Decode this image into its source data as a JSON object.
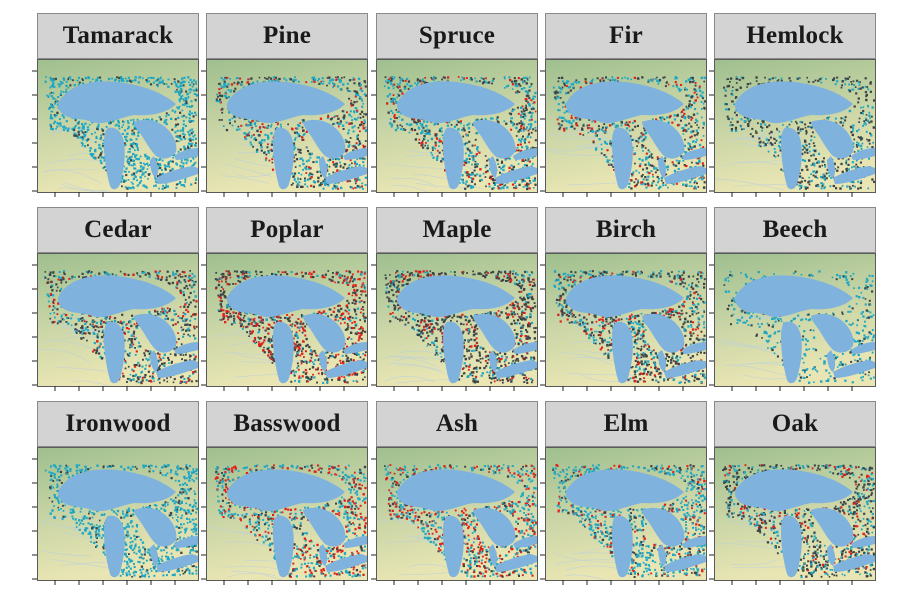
{
  "panels": [
    {
      "label": "Tamarack",
      "palette": [
        "#1fa7c4",
        "#1fa7c4",
        "#1fa7c4",
        "#1fa7c4",
        "#3c4446",
        "#1fa7c4"
      ],
      "density": 0.85
    },
    {
      "label": "Pine",
      "palette": [
        "#1fa7c4",
        "#3c4446",
        "#1fa7c4",
        "#3c4446",
        "#e0201b",
        "#1fa7c4"
      ],
      "density": 0.8
    },
    {
      "label": "Spruce",
      "palette": [
        "#1fa7c4",
        "#3c4446",
        "#1fa7c4",
        "#3c4446",
        "#1fa7c4",
        "#e0201b"
      ],
      "density": 0.8
    },
    {
      "label": "Fir",
      "palette": [
        "#1fa7c4",
        "#3c4446",
        "#3c4446",
        "#1fa7c4",
        "#e0201b",
        "#1fa7c4"
      ],
      "density": 0.7
    },
    {
      "label": "Hemlock",
      "palette": [
        "#3c4446",
        "#1fa7c4",
        "#3c4446",
        "#3c4446",
        "#1fa7c4",
        "#3c4446"
      ],
      "density": 0.55
    },
    {
      "label": "Cedar",
      "palette": [
        "#1fa7c4",
        "#3c4446",
        "#1fa7c4",
        "#3c4446",
        "#e0201b",
        "#3c4446"
      ],
      "density": 0.75
    },
    {
      "label": "Poplar",
      "palette": [
        "#3c4446",
        "#e0201b",
        "#3c4446",
        "#1fa7c4",
        "#e0201b",
        "#3c4446"
      ],
      "density": 0.95
    },
    {
      "label": "Maple",
      "palette": [
        "#3c4446",
        "#3c4446",
        "#1fa7c4",
        "#3c4446",
        "#e0201b",
        "#3c4446"
      ],
      "density": 0.9
    },
    {
      "label": "Birch",
      "palette": [
        "#3c4446",
        "#1fa7c4",
        "#3c4446",
        "#3c4446",
        "#1fa7c4",
        "#e0201b"
      ],
      "density": 0.9
    },
    {
      "label": "Beech",
      "palette": [
        "#1fa7c4",
        "#1fa7c4",
        "#3c4446",
        "#1fa7c4",
        "#1fa7c4",
        "#1fa7c4"
      ],
      "density": 0.4
    },
    {
      "label": "Ironwood",
      "palette": [
        "#1fa7c4",
        "#1fa7c4",
        "#1fa7c4",
        "#3c4446",
        "#1fa7c4",
        "#1fa7c4"
      ],
      "density": 0.75
    },
    {
      "label": "Basswood",
      "palette": [
        "#1fa7c4",
        "#e0201b",
        "#3c4446",
        "#1fa7c4",
        "#e0201b",
        "#1fa7c4"
      ],
      "density": 0.75
    },
    {
      "label": "Ash",
      "palette": [
        "#1fa7c4",
        "#e0201b",
        "#3c4446",
        "#1fa7c4",
        "#e0201b",
        "#1fa7c4"
      ],
      "density": 0.8
    },
    {
      "label": "Elm",
      "palette": [
        "#1fa7c4",
        "#1fa7c4",
        "#e0201b",
        "#3c4446",
        "#1fa7c4",
        "#1fa7c4"
      ],
      "density": 0.8
    },
    {
      "label": "Oak",
      "palette": [
        "#3c4446",
        "#1fa7c4",
        "#3c4446",
        "#e0201b",
        "#3c4446",
        "#1fa7c4"
      ],
      "density": 0.85
    }
  ],
  "colors": {
    "land_south": "#eae6b4",
    "land_north": "#9fbf8f",
    "water": "#7fb2dc",
    "strip_bg": "#d3d3d3",
    "frame": "#5a5a5a",
    "present_blue": "#1fa7c4",
    "present_gray": "#3c4446",
    "present_red": "#e0201b"
  }
}
